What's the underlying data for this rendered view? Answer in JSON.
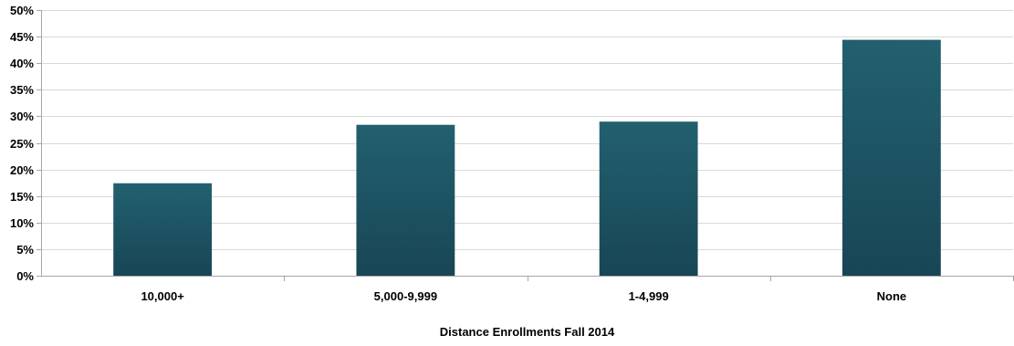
{
  "chart_data": {
    "type": "bar",
    "categories": [
      "10,000+",
      "5,000-9,999",
      "1-4,999",
      "None"
    ],
    "values": [
      17.4,
      28.4,
      29.0,
      44.4
    ],
    "xlabel": "Distance Enrollments Fall 2014",
    "ylabel": "",
    "ylim": [
      0,
      50
    ],
    "yticks": [
      0,
      5,
      10,
      15,
      20,
      25,
      30,
      35,
      40,
      45,
      50
    ],
    "ytick_labels": [
      "0%",
      "5%",
      "10%",
      "15%",
      "20%",
      "25%",
      "30%",
      "35%",
      "40%",
      "45%",
      "50%"
    ],
    "grid": true,
    "legend": "none",
    "colors": {
      "bar_top": "#22606f",
      "bar_bottom": "#184656",
      "grid": "#d9d9d9",
      "axis": "#a6a6a6"
    }
  }
}
